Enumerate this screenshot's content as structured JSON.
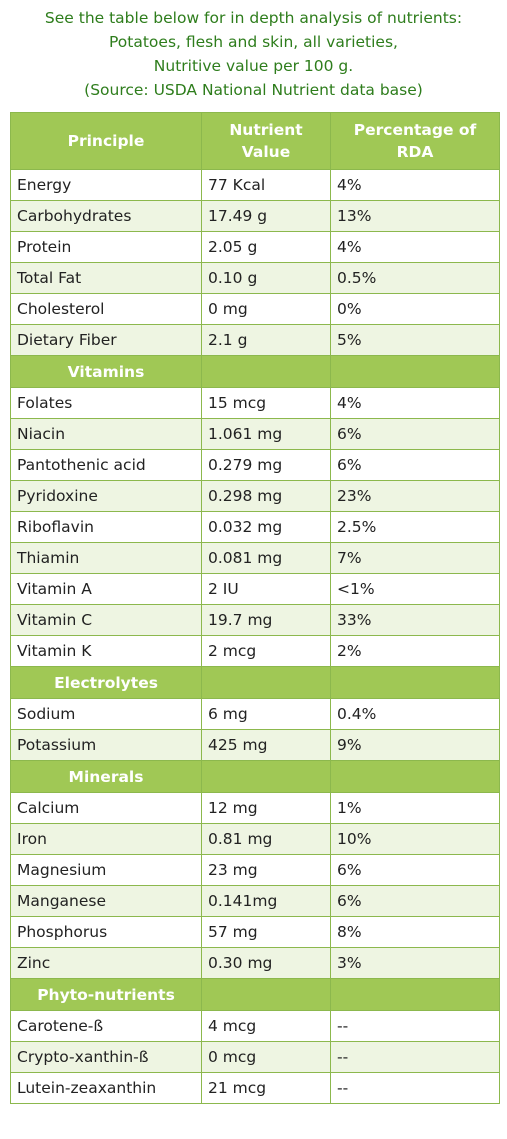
{
  "intro": {
    "lines": [
      "See the table below for in depth analysis of nutrients:",
      "Potatoes, flesh and skin, all varieties,",
      "Nutritive value per 100 g.",
      "(Source: USDA National Nutrient data base)"
    ]
  },
  "table": {
    "headers": [
      "Principle",
      "Nutrient Value",
      "Percentage of RDA"
    ],
    "principle_rows": [
      [
        "Energy",
        "77 Kcal",
        "4%"
      ],
      [
        "Carbohydrates",
        "17.49 g",
        "13%"
      ],
      [
        "Protein",
        "2.05 g",
        "4%"
      ],
      [
        "Total Fat",
        "0.10 g",
        "0.5%"
      ],
      [
        "Cholesterol",
        "0 mg",
        "0%"
      ],
      [
        "Dietary Fiber",
        "2.1 g",
        "5%"
      ]
    ],
    "vitamins_label": "Vitamins",
    "vitamin_rows": [
      [
        "Folates",
        "15 mcg",
        "4%"
      ],
      [
        "Niacin",
        "1.061 mg",
        "6%"
      ],
      [
        "Pantothenic acid",
        "0.279 mg",
        "6%"
      ],
      [
        "Pyridoxine",
        "0.298 mg",
        "23%"
      ],
      [
        "Riboflavin",
        "0.032 mg",
        "2.5%"
      ],
      [
        "Thiamin",
        "0.081 mg",
        "7%"
      ],
      [
        "Vitamin A",
        "2 IU",
        "<1%"
      ],
      [
        "Vitamin C",
        "19.7 mg",
        "33%"
      ],
      [
        "Vitamin K",
        "2 mcg",
        "2%"
      ]
    ],
    "electrolytes_label": "Electrolytes",
    "electrolyte_rows": [
      [
        "Sodium",
        "6 mg",
        "0.4%"
      ],
      [
        "Potassium",
        "425 mg",
        "9%"
      ]
    ],
    "minerals_label": "Minerals",
    "mineral_rows": [
      [
        "Calcium",
        "12 mg",
        "1%"
      ],
      [
        "Iron",
        "0.81 mg",
        "10%"
      ],
      [
        "Magnesium",
        "23 mg",
        "6%"
      ],
      [
        "Manganese",
        "0.141mg",
        "6%"
      ],
      [
        "Phosphorus",
        "57 mg",
        "8%"
      ],
      [
        "Zinc",
        "0.30 mg",
        "3%"
      ]
    ],
    "phyto_label": "Phyto-nutrients",
    "phyto_rows": [
      [
        "Carotene-ß",
        "4 mcg",
        "--"
      ],
      [
        "Crypto-xanthin-ß",
        "0 mcg",
        "--"
      ],
      [
        "Lutein-zeaxanthin",
        "21 mcg",
        "--"
      ]
    ]
  }
}
